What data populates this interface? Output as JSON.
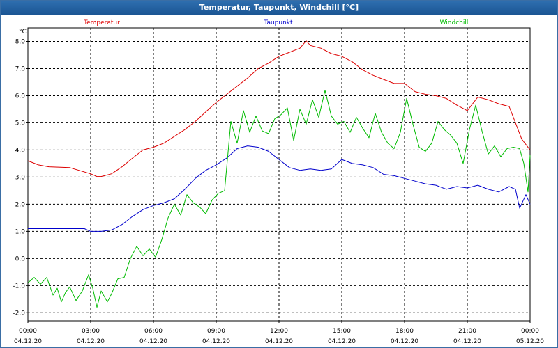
{
  "window": {
    "title": "Temperatur, Taupunkt, Windchill [°C]"
  },
  "chart_data": {
    "type": "line",
    "title": "Temperatur, Taupunkt, Windchill [°C]",
    "ylabel": "°C",
    "ylim": [
      -2.3,
      8.5
    ],
    "yticks": [
      -2,
      -1,
      0,
      1,
      2,
      3,
      4,
      5,
      6,
      7,
      8
    ],
    "ytick_labels": [
      "-2.0",
      "-1.0",
      "0.0",
      "1.0",
      "2.0",
      "3.0",
      "4.0",
      "5.0",
      "6.0",
      "7.0",
      "8.0"
    ],
    "x_range_hours": [
      0,
      24
    ],
    "xticks": [
      {
        "time": "00:00",
        "date": "04.12.20"
      },
      {
        "time": "03:00",
        "date": "04.12.20"
      },
      {
        "time": "06:00",
        "date": "04.12.20"
      },
      {
        "time": "09:00",
        "date": "04.12.20"
      },
      {
        "time": "12:00",
        "date": "04.12.20"
      },
      {
        "time": "15:00",
        "date": "04.12.20"
      },
      {
        "time": "18:00",
        "date": "04.12.20"
      },
      {
        "time": "21:00",
        "date": "04.12.20"
      },
      {
        "time": "00:00",
        "date": "05.12.20"
      }
    ],
    "grid": true,
    "series": [
      {
        "name": "Temperatur",
        "color": "#dd0000",
        "x": [
          0,
          0.5,
          1,
          2,
          3,
          3.3,
          3.5,
          4,
          4.5,
          5,
          5.5,
          6,
          6.5,
          7,
          7.5,
          8,
          8.5,
          9,
          9.5,
          10,
          10.5,
          11,
          11.5,
          12,
          12.5,
          13,
          13.3,
          13.5,
          14,
          14.5,
          15,
          15.5,
          16,
          16.5,
          17,
          17.5,
          18,
          18.5,
          19,
          19.5,
          20,
          20.5,
          21,
          21.5,
          22,
          22.5,
          23,
          23.3,
          23.6,
          24
        ],
        "values": [
          3.6,
          3.45,
          3.38,
          3.35,
          3.12,
          3.02,
          3.02,
          3.12,
          3.38,
          3.7,
          4.0,
          4.1,
          4.25,
          4.5,
          4.75,
          5.05,
          5.4,
          5.75,
          6.05,
          6.35,
          6.65,
          7.0,
          7.2,
          7.45,
          7.6,
          7.75,
          8.02,
          7.85,
          7.75,
          7.55,
          7.45,
          7.25,
          6.95,
          6.75,
          6.6,
          6.45,
          6.45,
          6.15,
          6.05,
          6.0,
          5.9,
          5.65,
          5.45,
          5.95,
          5.85,
          5.7,
          5.6,
          5.0,
          4.4,
          4.0
        ]
      },
      {
        "name": "Taupunkt",
        "color": "#0000cc",
        "x": [
          0,
          1,
          2,
          2.7,
          3,
          3.5,
          4,
          4.5,
          5,
          5.5,
          6,
          6.5,
          7,
          7.5,
          8,
          8.5,
          9,
          9.5,
          10,
          10.5,
          11,
          11.5,
          12,
          12.5,
          13,
          13.5,
          14,
          14.5,
          15,
          15.5,
          16,
          16.5,
          17,
          17.5,
          18,
          18.5,
          19,
          19.5,
          20,
          20.5,
          21,
          21.5,
          22,
          22.5,
          23,
          23.3,
          23.5,
          23.8,
          24
        ],
        "values": [
          1.1,
          1.1,
          1.1,
          1.1,
          1.0,
          1.0,
          1.05,
          1.25,
          1.55,
          1.8,
          1.95,
          2.05,
          2.2,
          2.55,
          2.95,
          3.25,
          3.45,
          3.7,
          4.05,
          4.15,
          4.1,
          3.95,
          3.65,
          3.35,
          3.25,
          3.3,
          3.25,
          3.3,
          3.65,
          3.5,
          3.45,
          3.35,
          3.1,
          3.05,
          2.95,
          2.85,
          2.75,
          2.7,
          2.55,
          2.65,
          2.6,
          2.7,
          2.55,
          2.45,
          2.65,
          2.55,
          1.85,
          2.35,
          2.0
        ]
      },
      {
        "name": "Windchill",
        "color": "#00bb00",
        "x": [
          0,
          0.3,
          0.6,
          0.9,
          1.2,
          1.4,
          1.6,
          1.8,
          2.0,
          2.3,
          2.6,
          2.9,
          3.1,
          3.3,
          3.5,
          3.8,
          4.0,
          4.3,
          4.6,
          4.9,
          5.2,
          5.5,
          5.8,
          6.1,
          6.4,
          6.7,
          7.0,
          7.3,
          7.6,
          7.9,
          8.2,
          8.5,
          8.8,
          9.1,
          9.4,
          9.7,
          10.0,
          10.3,
          10.6,
          10.9,
          11.2,
          11.5,
          11.8,
          12.1,
          12.4,
          12.7,
          13.0,
          13.3,
          13.6,
          13.9,
          14.2,
          14.5,
          14.8,
          15.1,
          15.4,
          15.7,
          16.0,
          16.3,
          16.6,
          16.9,
          17.2,
          17.5,
          17.8,
          18.1,
          18.4,
          18.7,
          19.0,
          19.3,
          19.6,
          19.9,
          20.2,
          20.5,
          20.8,
          21.1,
          21.4,
          21.7,
          22.0,
          22.3,
          22.6,
          22.9,
          23.2,
          23.5,
          23.7,
          23.9,
          24
        ],
        "values": [
          -0.9,
          -0.7,
          -0.95,
          -0.7,
          -1.35,
          -1.1,
          -1.6,
          -1.25,
          -1.05,
          -1.55,
          -1.2,
          -0.6,
          -1.1,
          -1.8,
          -1.2,
          -1.6,
          -1.3,
          -0.75,
          -0.7,
          0.0,
          0.45,
          0.1,
          0.35,
          0.05,
          0.7,
          1.5,
          2.0,
          1.6,
          2.35,
          2.05,
          1.9,
          1.65,
          2.15,
          2.4,
          2.5,
          5.05,
          4.25,
          5.45,
          4.65,
          5.25,
          4.7,
          4.6,
          5.15,
          5.3,
          5.55,
          4.35,
          5.5,
          4.95,
          5.85,
          5.2,
          6.2,
          5.25,
          4.95,
          5.05,
          4.65,
          5.2,
          4.8,
          4.45,
          5.35,
          4.65,
          4.25,
          4.05,
          4.65,
          5.9,
          4.95,
          4.1,
          3.95,
          4.25,
          5.05,
          4.75,
          4.55,
          4.25,
          3.5,
          4.75,
          5.65,
          4.7,
          3.85,
          4.15,
          3.75,
          4.05,
          4.1,
          4.05,
          3.5,
          2.45,
          3.8
        ]
      }
    ]
  }
}
